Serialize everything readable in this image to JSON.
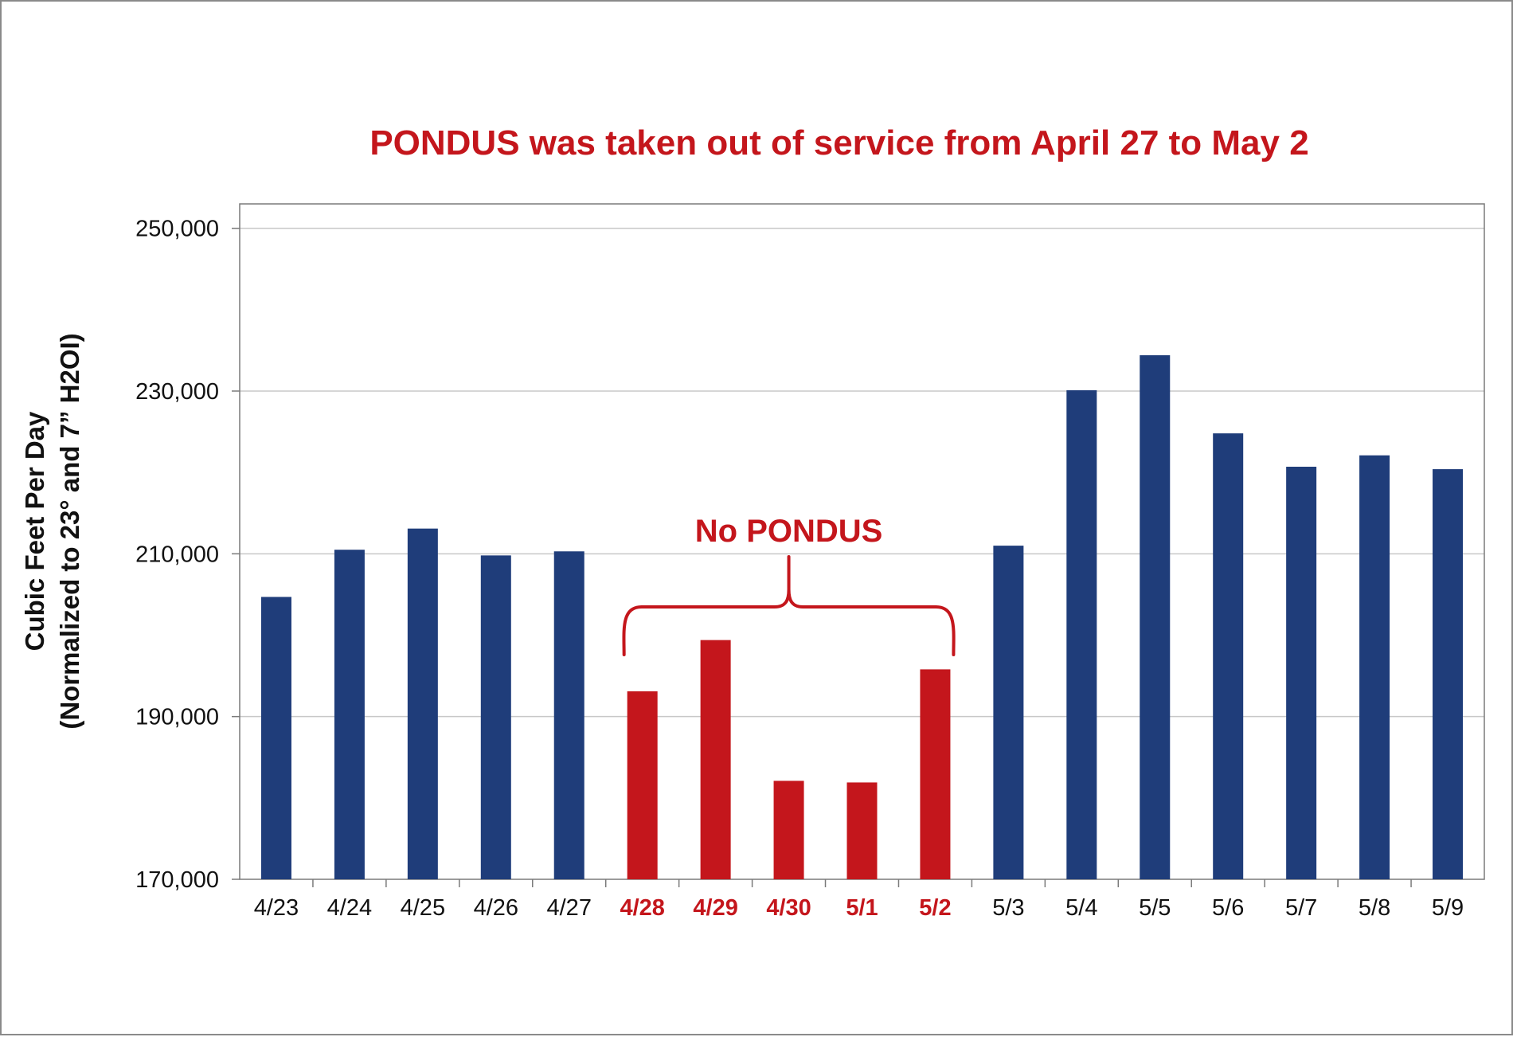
{
  "chart_data": {
    "type": "bar",
    "title": "PONDUS was taken out of service from April 27 to May 2",
    "ylabel_lines": [
      "Cubic Feet Per Day",
      "(Normalized to 23° and 7” H2OI)"
    ],
    "xlabel": "",
    "categories": [
      "4/23",
      "4/24",
      "4/25",
      "4/26",
      "4/27",
      "4/28",
      "4/29",
      "4/30",
      "5/1",
      "5/2",
      "5/3",
      "5/4",
      "5/5",
      "5/6",
      "5/7",
      "5/8",
      "5/9"
    ],
    "values": [
      204700,
      210500,
      213100,
      209800,
      210300,
      193100,
      199400,
      182100,
      181900,
      195800,
      211000,
      230100,
      234400,
      224800,
      220700,
      222100,
      220400
    ],
    "highlighted": [
      false,
      false,
      false,
      false,
      false,
      true,
      true,
      true,
      true,
      true,
      false,
      false,
      false,
      false,
      false,
      false,
      false
    ],
    "ylim": [
      170000,
      253000
    ],
    "yticks": [
      170000,
      190000,
      210000,
      230000,
      250000
    ],
    "ytick_labels": [
      "170,000",
      "190,000",
      "210,000",
      "230,000",
      "250,000"
    ],
    "grid": true,
    "legend": "none",
    "annotation": {
      "text": "No PONDUS",
      "from_category": "4/28",
      "to_category": "5/2"
    },
    "colors": {
      "normal": "#1f3d7a",
      "highlight": "#c4161c",
      "title": "#c4161c",
      "grid": "#c8c8c8",
      "axis": "#7a7a7a"
    }
  }
}
